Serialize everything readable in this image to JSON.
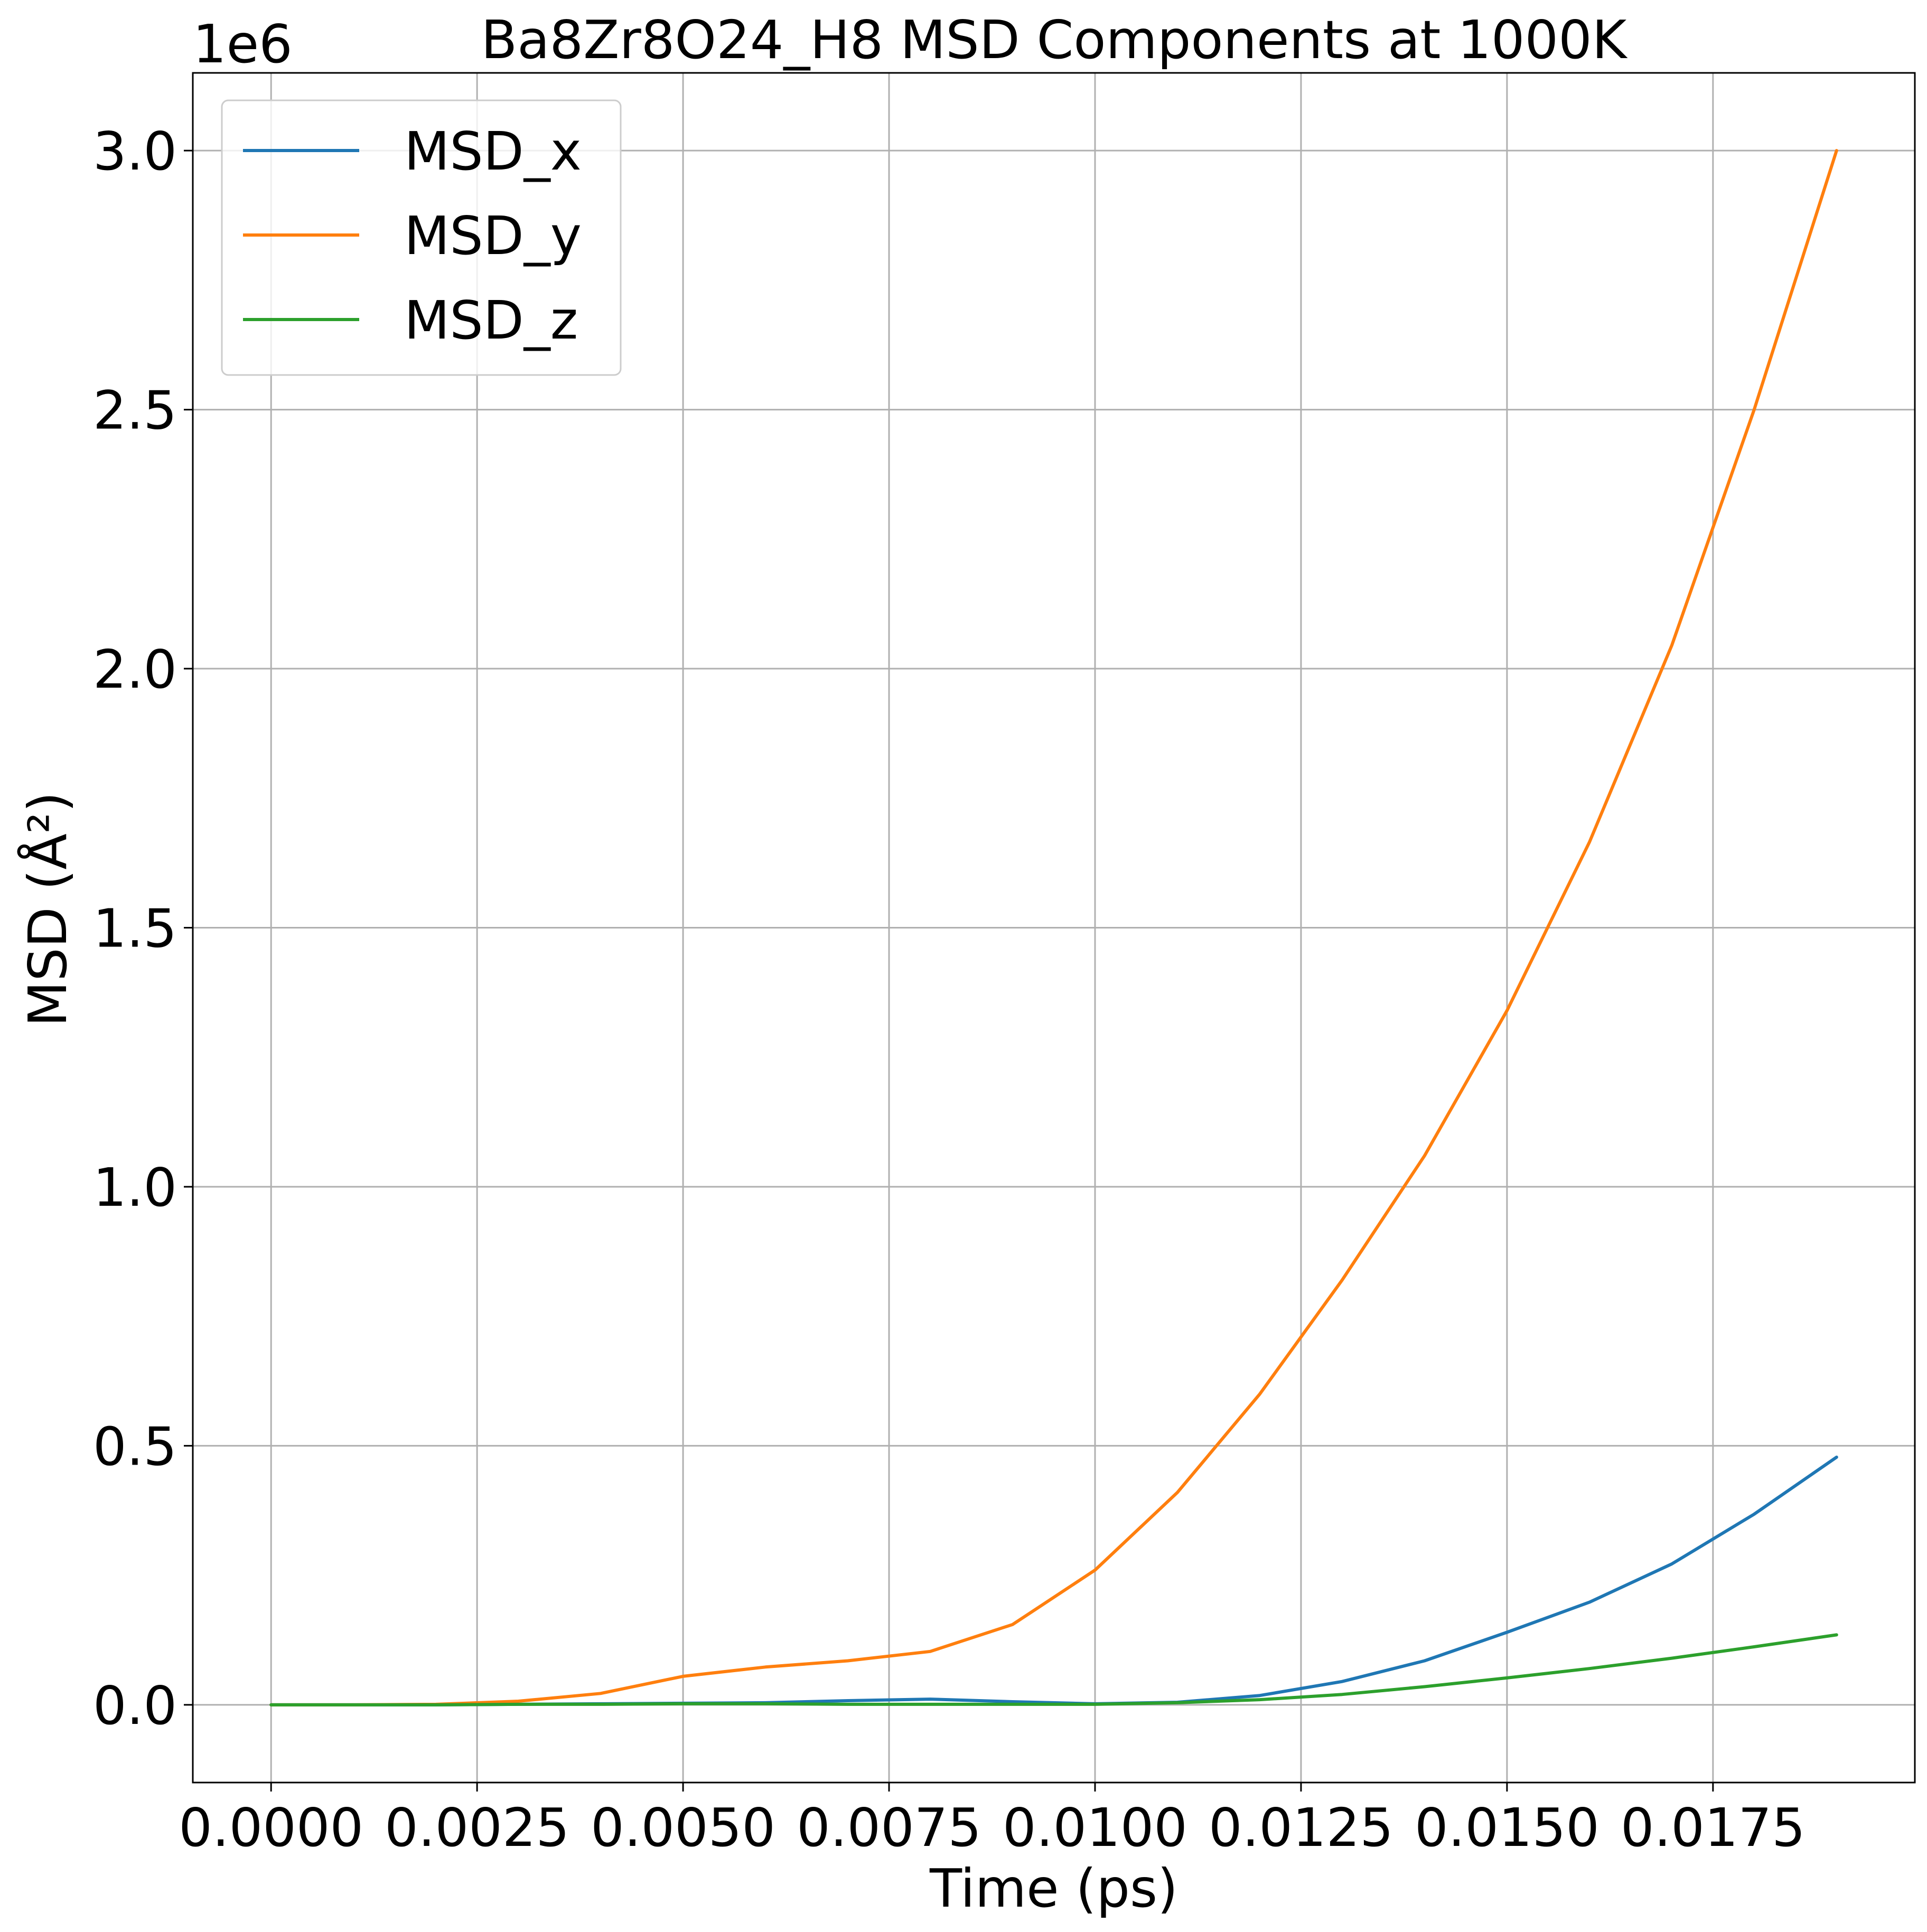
{
  "chart_data": {
    "type": "line",
    "title": "Ba8Zr8O24_H8 MSD Components at 1000K",
    "xlabel": "Time (ps)",
    "ylabel": "MSD (Å²)",
    "y_offset_label": "1e6",
    "xlim": [
      -0.00095,
      0.01995
    ],
    "ylim": [
      -150000,
      3150000
    ],
    "x_ticks": [
      0.0,
      0.0025,
      0.005,
      0.0075,
      0.01,
      0.0125,
      0.015,
      0.0175
    ],
    "x_tick_labels": [
      "0.0000",
      "0.0025",
      "0.0050",
      "0.0075",
      "0.0100",
      "0.0125",
      "0.0150",
      "0.0175"
    ],
    "y_ticks": [
      0,
      500000,
      1000000,
      1500000,
      2000000,
      2500000,
      3000000
    ],
    "y_tick_labels": [
      "0.0",
      "0.5",
      "1.0",
      "1.5",
      "2.0",
      "2.5",
      "3.0"
    ],
    "grid": true,
    "legend_position": "top-left",
    "x": [
      0.0,
      0.001,
      0.002,
      0.003,
      0.004,
      0.005,
      0.006,
      0.007,
      0.008,
      0.009,
      0.01,
      0.011,
      0.012,
      0.013,
      0.014,
      0.015,
      0.016,
      0.017,
      0.018,
      0.019
    ],
    "series": [
      {
        "name": "MSD_x",
        "color": "#1f77b4",
        "values": [
          0,
          0,
          0,
          1000,
          2000,
          3000,
          4000,
          8000,
          11000,
          6000,
          2000,
          5000,
          18000,
          45000,
          85000,
          140000,
          198000,
          272000,
          368000,
          478000
        ]
      },
      {
        "name": "MSD_y",
        "color": "#ff7f0e",
        "values": [
          0,
          0,
          1000,
          7000,
          22000,
          55000,
          73000,
          85000,
          103000,
          155000,
          260000,
          410000,
          600000,
          820000,
          1060000,
          1340000,
          1665000,
          2045000,
          2500000,
          3000000
        ]
      },
      {
        "name": "MSD_z",
        "color": "#2ca02c",
        "values": [
          0,
          0,
          0,
          1000,
          1000,
          2000,
          2000,
          1000,
          1000,
          1000,
          1000,
          4000,
          10000,
          20000,
          35000,
          52000,
          70000,
          90000,
          112000,
          135000
        ]
      }
    ]
  }
}
